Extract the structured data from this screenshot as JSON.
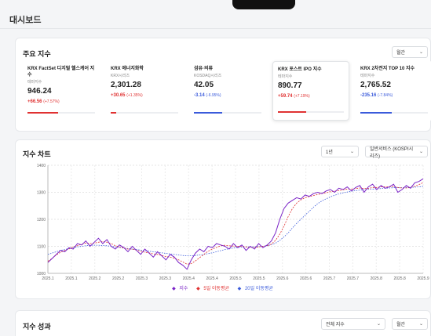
{
  "page": {
    "title": "대시보드"
  },
  "index_section": {
    "title": "주요 지수",
    "period_select": "월간",
    "cards": [
      {
        "name": "KRX FactSet 디지털 헬스케어 지수",
        "category": "테마지수",
        "value": "946.24",
        "change": "+66.56",
        "pct": "(+7.57%)",
        "dir": "up",
        "progress": 0.45
      },
      {
        "name": "KRX 에너지화학",
        "category": "KRX시리즈",
        "value": "2,301.28",
        "change": "+30.65",
        "pct": "(+1.35%)",
        "dir": "up",
        "progress": 0.08
      },
      {
        "name": "섬유·의류",
        "category": "KOSDAQ시리즈",
        "value": "42.05",
        "change": "-3.14",
        "pct": "(-6.95%)",
        "dir": "down",
        "progress": 0.42
      },
      {
        "name": "KRX 포스트 IPO 지수",
        "category": "테마지수",
        "value": "890.77",
        "change": "+59.74",
        "pct": "(+7.19%)",
        "dir": "up",
        "progress": 0.43
      },
      {
        "name": "KRX 2차전지 TOP 10 지수",
        "category": "테마지수",
        "value": "2,765.52",
        "change": "-235.16",
        "pct": "(-7.84%)",
        "dir": "down",
        "progress": 0.47
      }
    ]
  },
  "chart_section": {
    "title": "지수 차트",
    "range_select": "1년",
    "index_select": "일반서비스 (KOSPI시리즈)"
  },
  "chart_data": {
    "type": "line",
    "x_ticks": [
      "2025.1",
      "2025.1",
      "2025.2",
      "2025.2",
      "2025.3",
      "2025.3",
      "2025.4",
      "2025.4",
      "2025.5",
      "2025.5",
      "2025.6",
      "2025.6",
      "2025.7",
      "2025.7",
      "2025.8",
      "2025.8",
      "2025.9"
    ],
    "y_ticks": [
      1000,
      1100,
      1200,
      1300,
      1400
    ],
    "ylim": [
      1000,
      1400
    ],
    "grid": true,
    "legend_position": "bottom",
    "series": [
      {
        "name": "지수",
        "color": "#7a23c7",
        "values": [
          1040,
          1055,
          1070,
          1085,
          1080,
          1095,
          1090,
          1110,
          1105,
          1120,
          1100,
          1115,
          1130,
          1110,
          1125,
          1100,
          1090,
          1105,
          1095,
          1080,
          1100,
          1085,
          1070,
          1090,
          1075,
          1060,
          1080,
          1065,
          1050,
          1070,
          1060,
          1040,
          1030,
          1015,
          1050,
          1075,
          1090,
          1080,
          1100,
          1095,
          1110,
          1105,
          1100,
          1090,
          1110,
          1095,
          1105,
          1085,
          1100,
          1090,
          1110,
          1095,
          1105,
          1120,
          1150,
          1200,
          1240,
          1260,
          1270,
          1280,
          1275,
          1290,
          1285,
          1295,
          1300,
          1295,
          1305,
          1310,
          1300,
          1315,
          1310,
          1320,
          1305,
          1318,
          1325,
          1300,
          1320,
          1330,
          1310,
          1325,
          1315,
          1320,
          1330,
          1300,
          1310,
          1325,
          1315,
          1335,
          1340,
          1350
        ]
      },
      {
        "name": "5일 이동평균",
        "color": "#e03131",
        "values": [
          1045,
          1055,
          1068,
          1078,
          1085,
          1090,
          1098,
          1102,
          1108,
          1112,
          1110,
          1112,
          1115,
          1118,
          1115,
          1110,
          1102,
          1098,
          1094,
          1090,
          1090,
          1086,
          1082,
          1078,
          1076,
          1072,
          1070,
          1066,
          1062,
          1060,
          1056,
          1050,
          1042,
          1034,
          1036,
          1046,
          1058,
          1070,
          1082,
          1090,
          1096,
          1102,
          1104,
          1102,
          1101,
          1100,
          1100,
          1098,
          1096,
          1096,
          1098,
          1100,
          1102,
          1108,
          1122,
          1145,
          1175,
          1210,
          1240,
          1260,
          1272,
          1280,
          1284,
          1288,
          1292,
          1295,
          1298,
          1302,
          1304,
          1306,
          1309,
          1312,
          1312,
          1314,
          1316,
          1314,
          1314,
          1318,
          1318,
          1320,
          1320,
          1320,
          1322,
          1318,
          1316,
          1316,
          1318,
          1322,
          1328,
          1336
        ]
      },
      {
        "name": "20일 이동평균",
        "color": "#3b5bdb",
        "values": [
          1070,
          1075,
          1080,
          1085,
          1088,
          1092,
          1095,
          1098,
          1100,
          1102,
          1104,
          1104,
          1104,
          1103,
          1102,
          1100,
          1098,
          1096,
          1094,
          1092,
          1090,
          1088,
          1086,
          1084,
          1082,
          1080,
          1078,
          1076,
          1074,
          1072,
          1070,
          1068,
          1066,
          1065,
          1065,
          1066,
          1068,
          1070,
          1073,
          1076,
          1080,
          1084,
          1088,
          1091,
          1094,
          1096,
          1097,
          1098,
          1098,
          1098,
          1099,
          1100,
          1102,
          1106,
          1112,
          1122,
          1135,
          1150,
          1168,
          1185,
          1200,
          1215,
          1230,
          1245,
          1258,
          1268,
          1276,
          1283,
          1289,
          1294,
          1298,
          1301,
          1304,
          1306,
          1308,
          1310,
          1311,
          1312,
          1313,
          1314,
          1315,
          1316,
          1317,
          1317,
          1317,
          1318,
          1318,
          1319,
          1320,
          1322
        ]
      }
    ]
  },
  "perf_section": {
    "title": "지수 성과",
    "index_select": "전체 지수",
    "period_select": "월간"
  }
}
